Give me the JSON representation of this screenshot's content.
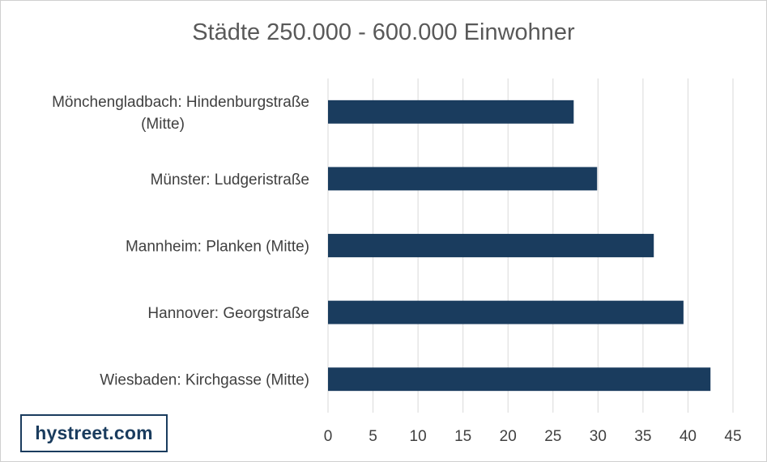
{
  "chart_data": {
    "type": "bar",
    "orientation": "horizontal",
    "title": "Städte 250.000 - 600.000 Einwohner",
    "categories": [
      [
        "Mönchengladbach: Hindenburgstraße",
        "(Mitte)"
      ],
      [
        "Münster: Ludgeristraße"
      ],
      [
        "Mannheim: Planken (Mitte)"
      ],
      [
        "Hannover: Georgstraße"
      ],
      [
        "Wiesbaden: Kirchgasse (Mitte)"
      ]
    ],
    "values": [
      27.3,
      29.9,
      36.2,
      39.5,
      42.5
    ],
    "xlim": [
      0,
      45
    ],
    "xticks": [
      "0",
      "5",
      "10",
      "15",
      "20",
      "25",
      "30",
      "35",
      "40",
      "45"
    ],
    "grid": "vertical",
    "bar_color": "#1a3c5e",
    "grid_color": "#d9d9d9"
  },
  "logo": {
    "text": "hystreet.com",
    "color": "#1a3c5e"
  }
}
